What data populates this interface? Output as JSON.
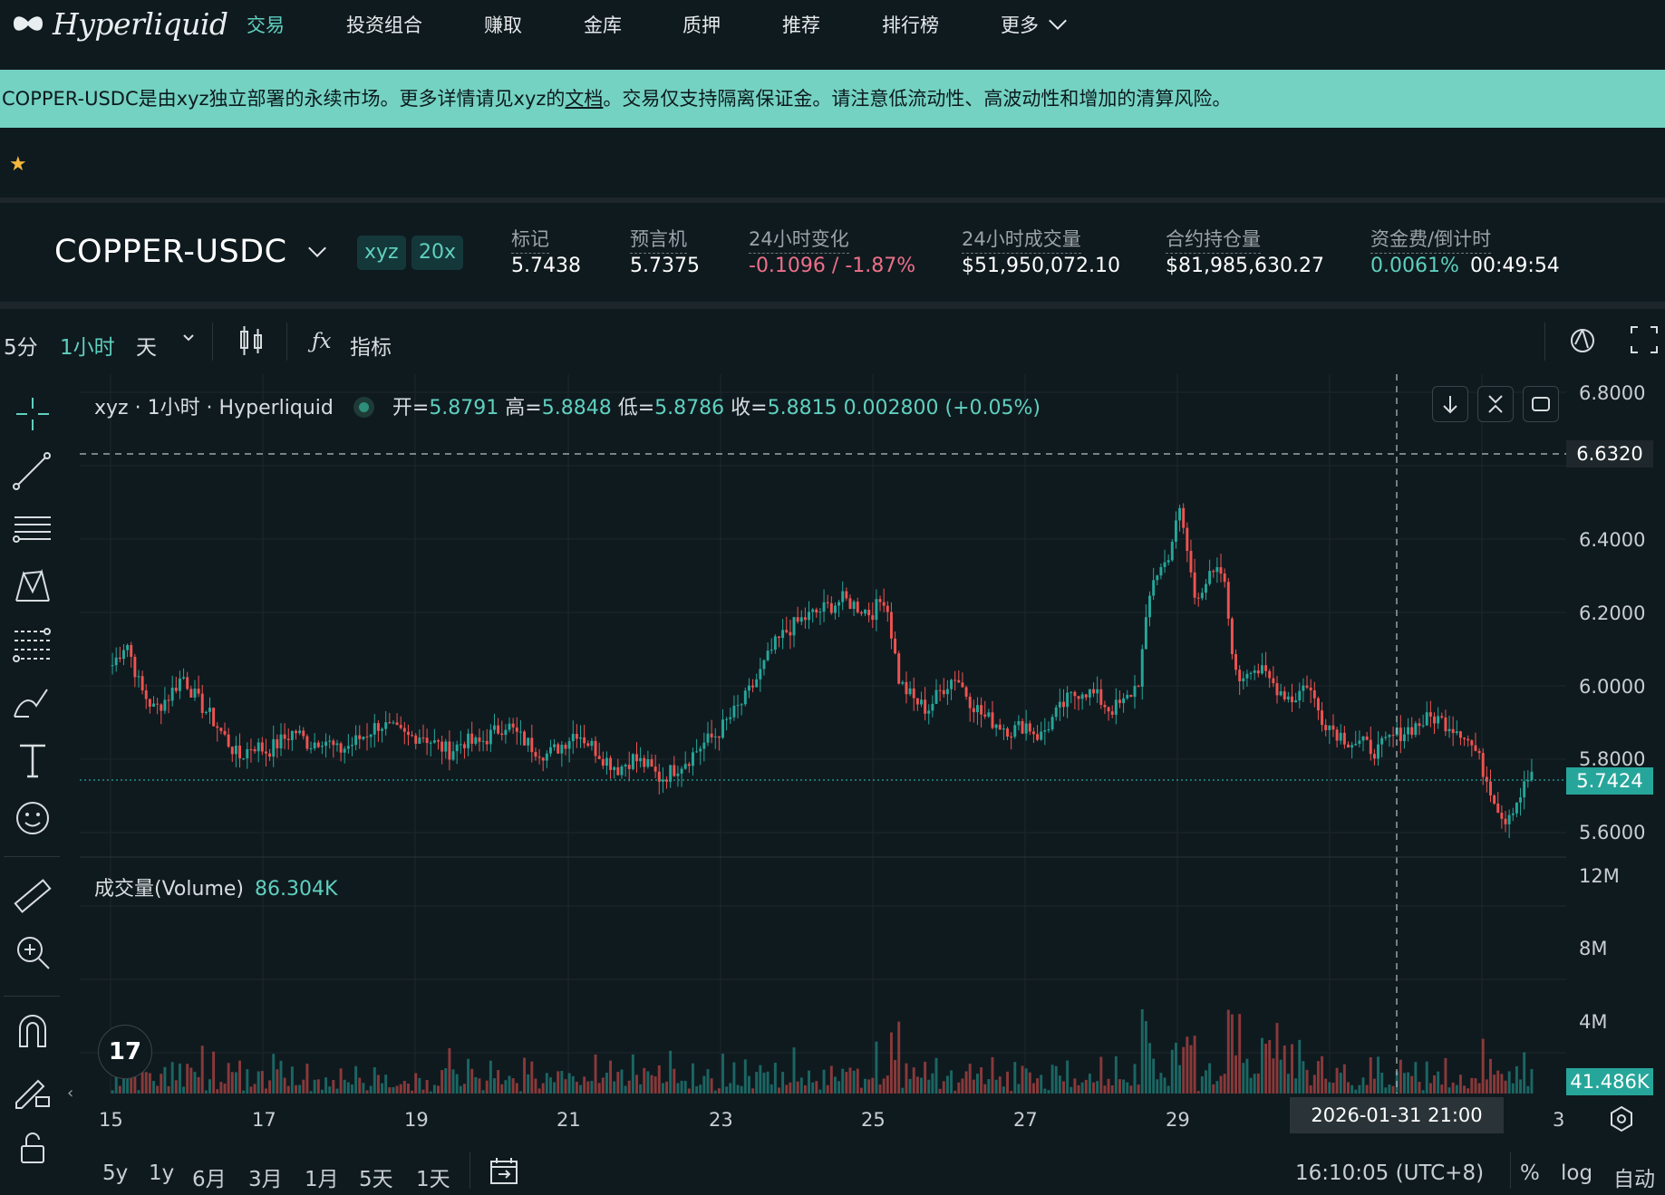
{
  "nav": {
    "brand": "Hyperliquid",
    "items": [
      {
        "label": "交易",
        "active": true
      },
      {
        "label": "投资组合"
      },
      {
        "label": "赚取"
      },
      {
        "label": "金库"
      },
      {
        "label": "质押"
      },
      {
        "label": "推荐"
      },
      {
        "label": "排行榜"
      },
      {
        "label": "更多"
      }
    ]
  },
  "banner": {
    "text_before": "COPPER-USDC是由xyz独立部署的永续市场。更多详情请见xyz的",
    "link": "文档",
    "text_after": "。交易仅支持隔离保证金。请注意低流动性、高波动性和增加的清算风险。"
  },
  "market": {
    "symbol": "COPPER-USDC",
    "tags": [
      "xyz",
      "20x"
    ],
    "stats": [
      {
        "label": "标记",
        "value": "5.7438"
      },
      {
        "label": "预言机",
        "value": "5.7375"
      },
      {
        "label": "24小时变化",
        "value": "-0.1096 / -1.87%"
      },
      {
        "label": "24小时成交量",
        "value": "$51,950,072.10"
      },
      {
        "label": "合约持仓量",
        "value": "$81,985,630.27"
      },
      {
        "label": "资金费/倒计时",
        "value": "0.0061%",
        "extra": "00:49:54"
      }
    ]
  },
  "toolbar": {
    "intervals": [
      "5分",
      "1小时",
      "天"
    ],
    "active_interval": "1小时",
    "indicators": "指标"
  },
  "legend": {
    "title": "xyz · 1小时 · Hyperliquid",
    "open_label": "开=",
    "open": "5.8791",
    "high_label": "高=",
    "high": "5.8848",
    "low_label": "低=",
    "low": "5.8786",
    "close_label": "收=",
    "close": "5.8815",
    "change": "0.002800 (+0.05%)"
  },
  "volume_legend": {
    "label": "成交量(Volume)",
    "value": "86.304K"
  },
  "price_axis": [
    "6.8000",
    "6.4000",
    "6.2000",
    "6.0000",
    "5.8000",
    "5.6000"
  ],
  "crosshair_price": "6.6320",
  "last_price": "5.7424",
  "volume_axis": [
    "12M",
    "8M",
    "4M"
  ],
  "last_volume": "41.486K",
  "x_axis": [
    "15",
    "17",
    "19",
    "21",
    "23",
    "25",
    "27",
    "29",
    "3"
  ],
  "crosshair_time": "2026-01-31   21:00",
  "ranges": [
    "5y",
    "1y",
    "6月",
    "3月",
    "1月",
    "5天",
    "1天"
  ],
  "footer": {
    "clock": "16:10:05 (UTC+8)",
    "pct": "%",
    "log": "log",
    "auto": "自动"
  },
  "colors": {
    "up": "#26a69a",
    "down": "#ef5350",
    "accent": "#5fd0bf",
    "banner": "#74d2c2",
    "bg": "#0f1a1f"
  },
  "chart_data": {
    "type": "candlestick",
    "interval": "1小时",
    "ylim": [
      5.52,
      6.84
    ],
    "x_ticks": [
      "15",
      "17",
      "19",
      "21",
      "23",
      "25",
      "27",
      "29",
      "3"
    ],
    "close_path": [
      6.05,
      6.12,
      5.98,
      5.92,
      5.96,
      6.02,
      5.95,
      5.9,
      5.84,
      5.78,
      5.82,
      5.8,
      5.83,
      5.86,
      5.82,
      5.84,
      5.8,
      5.82,
      5.85,
      5.88,
      5.86,
      5.84,
      5.85,
      5.82,
      5.8,
      5.83,
      5.82,
      5.85,
      5.88,
      5.84,
      5.81,
      5.79,
      5.82,
      5.86,
      5.82,
      5.78,
      5.75,
      5.78,
      5.76,
      5.72,
      5.75,
      5.78,
      5.82,
      5.85,
      5.9,
      5.95,
      6.02,
      6.1,
      6.15,
      6.18,
      6.2,
      6.22,
      6.24,
      6.22,
      6.2,
      6.25,
      6.0,
      5.95,
      5.92,
      5.98,
      6.02,
      5.95,
      5.9,
      5.88,
      5.86,
      5.88,
      5.84,
      5.9,
      5.95,
      5.98,
      5.96,
      5.92,
      5.94,
      6.0,
      6.3,
      6.35,
      6.5,
      6.25,
      6.3,
      6.32,
      6.0,
      6.05,
      6.02,
      5.98,
      5.95,
      6.0,
      5.9,
      5.86,
      5.83,
      5.82,
      5.8,
      5.84,
      5.86,
      5.88,
      5.9,
      5.88,
      5.86,
      5.8,
      5.7,
      5.6,
      5.66,
      5.74
    ],
    "volume_axis_max": "12M"
  }
}
